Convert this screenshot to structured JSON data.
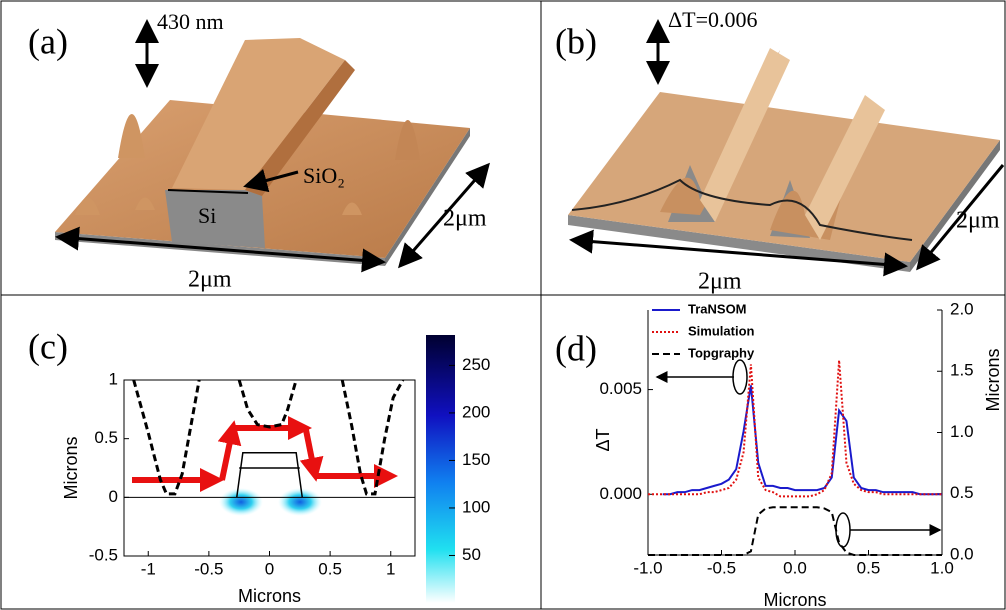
{
  "panels": [
    {
      "label": "(a)",
      "height_label": "430 nm",
      "layer_top": "SiO₂",
      "layer_bottom": "Si",
      "width_label": "2μm",
      "depth_label": "2μm"
    },
    {
      "label": "(b)",
      "height_label": "ΔT=0.006",
      "width_label": "2μm",
      "depth_label": "2μm"
    }
  ],
  "chart_data": [
    {
      "type": "contour",
      "panel_label": "(c)",
      "xlabel": "Microns",
      "ylabel": "Microns",
      "xlim": [
        -1.2,
        1.2
      ],
      "ylim": [
        -0.5,
        1
      ],
      "xticks": [
        -1,
        -0.5,
        0,
        0.5,
        1
      ],
      "yticks": [
        -0.5,
        0,
        0.5,
        1
      ],
      "series": [
        {
          "color": "#000000",
          "style": "dashed",
          "x": [
            -1.12,
            -1.0,
            -0.9,
            -0.85,
            -0.78,
            -0.72,
            -0.65,
            -0.58,
            -0.4,
            -0.25,
            -0.18,
            -0.1,
            0.0,
            0.1,
            0.15,
            0.22,
            0.4,
            0.6,
            0.68,
            0.75,
            0.8,
            0.87,
            0.95,
            1.02,
            1.1
          ],
          "values": [
            1,
            0.55,
            0.15,
            0.03,
            0.03,
            0.2,
            0.6,
            1,
            null,
            1,
            0.75,
            0.62,
            0.6,
            0.62,
            0.75,
            1,
            null,
            1,
            0.6,
            0.2,
            0.03,
            0.03,
            0.5,
            0.85,
            1
          ]
        },
        {
          "color": "#000000",
          "style": "solid",
          "x": [
            -0.27,
            -0.22,
            0.22,
            0.27
          ],
          "values": [
            0,
            0.38,
            0.38,
            0
          ]
        },
        {
          "color": "#000000",
          "style": "solid",
          "x": [
            -0.25,
            0.25
          ],
          "values": [
            0.25,
            0.25
          ]
        }
      ],
      "colorbar": {
        "lim": [
          0,
          282
        ],
        "ticks": [
          50,
          100,
          150,
          200,
          250
        ]
      }
    },
    {
      "type": "line",
      "panel_label": "(d)",
      "xlabel": "Microns",
      "ylabel": "ΔT",
      "y2label": "Microns",
      "xlim": [
        -1,
        1
      ],
      "ylim": [
        -0.0029,
        0.0088
      ],
      "y2lim": [
        0,
        2
      ],
      "xticks": [
        {
          "value": -1,
          "label": "-1.0"
        },
        {
          "value": -0.5,
          "label": "-0.5"
        },
        {
          "value": 0,
          "label": "0.0"
        },
        {
          "value": 0.5,
          "label": "0.5"
        },
        {
          "value": 1,
          "label": "1.0"
        }
      ],
      "yticks": [
        {
          "value": 0,
          "label": "0.000"
        },
        {
          "value": 0.005,
          "label": "0.005"
        }
      ],
      "y2ticks": [
        {
          "value": 0,
          "label": "0.0"
        },
        0.5,
        {
          "value": 1,
          "label": "1.0"
        },
        1.5,
        {
          "value": 2,
          "label": "2.0"
        }
      ],
      "legend": "upper left",
      "x": [
        -1.0,
        -0.95,
        -0.9,
        -0.85,
        -0.8,
        -0.75,
        -0.7,
        -0.65,
        -0.6,
        -0.55,
        -0.5,
        -0.45,
        -0.4,
        -0.35,
        -0.3,
        -0.25,
        -0.2,
        -0.15,
        -0.1,
        -0.05,
        0.0,
        0.05,
        0.1,
        0.15,
        0.2,
        0.25,
        0.3,
        0.35,
        0.4,
        0.45,
        0.5,
        0.55,
        0.6,
        0.65,
        0.7,
        0.75,
        0.8,
        0.85,
        0.9,
        0.95,
        1.0
      ],
      "series": [
        {
          "name": "TraNSOM",
          "color": "#1a1acc",
          "style": "solid",
          "values": [
            null,
            null,
            0.0,
            0.0,
            0.0001,
            0.0001,
            0.0002,
            0.0002,
            0.0003,
            0.0004,
            0.0005,
            0.0007,
            0.0012,
            0.003,
            0.0052,
            0.0015,
            0.0004,
            0.0004,
            0.0003,
            0.0003,
            0.0002,
            0.0002,
            0.0002,
            0.0002,
            0.0003,
            0.0008,
            0.004,
            0.0035,
            0.0008,
            0.0003,
            0.0002,
            0.0002,
            0.0001,
            0.0001,
            0.0001,
            0.0001,
            0.0001,
            0.0,
            0.0,
            0.0,
            0.0
          ]
        },
        {
          "name": "Simulation",
          "color": "#e01010",
          "style": "dotted",
          "values": [
            0.0,
            0.0,
            0.0,
            0.0,
            0.0,
            0.0,
            0.0,
            0.0,
            0.0001,
            0.0001,
            0.0002,
            0.0003,
            0.0007,
            0.002,
            0.0062,
            0.0008,
            0.0002,
            0.0001,
            -0.0001,
            -0.0001,
            -0.0001,
            -0.0001,
            -0.0001,
            0.0,
            0.0002,
            0.001,
            0.0064,
            0.0015,
            0.0005,
            0.0002,
            0.0001,
            0.0001,
            0.0,
            0.0,
            0.0,
            0.0,
            0.0,
            0.0,
            0.0,
            0.0,
            0.0
          ]
        },
        {
          "name": "Topgraphy",
          "color": "#000000",
          "style": "dashed",
          "axis": "y2",
          "values": [
            0,
            0,
            0,
            0,
            0,
            0,
            0,
            0,
            0,
            0,
            0,
            0,
            0,
            0,
            0.03,
            0.33,
            0.38,
            0.39,
            0.39,
            0.39,
            0.39,
            0.39,
            0.39,
            0.39,
            0.38,
            0.35,
            0.1,
            0.02,
            0,
            0,
            0,
            0,
            0,
            0,
            0,
            0,
            0,
            0,
            0,
            0,
            0
          ]
        }
      ]
    }
  ]
}
